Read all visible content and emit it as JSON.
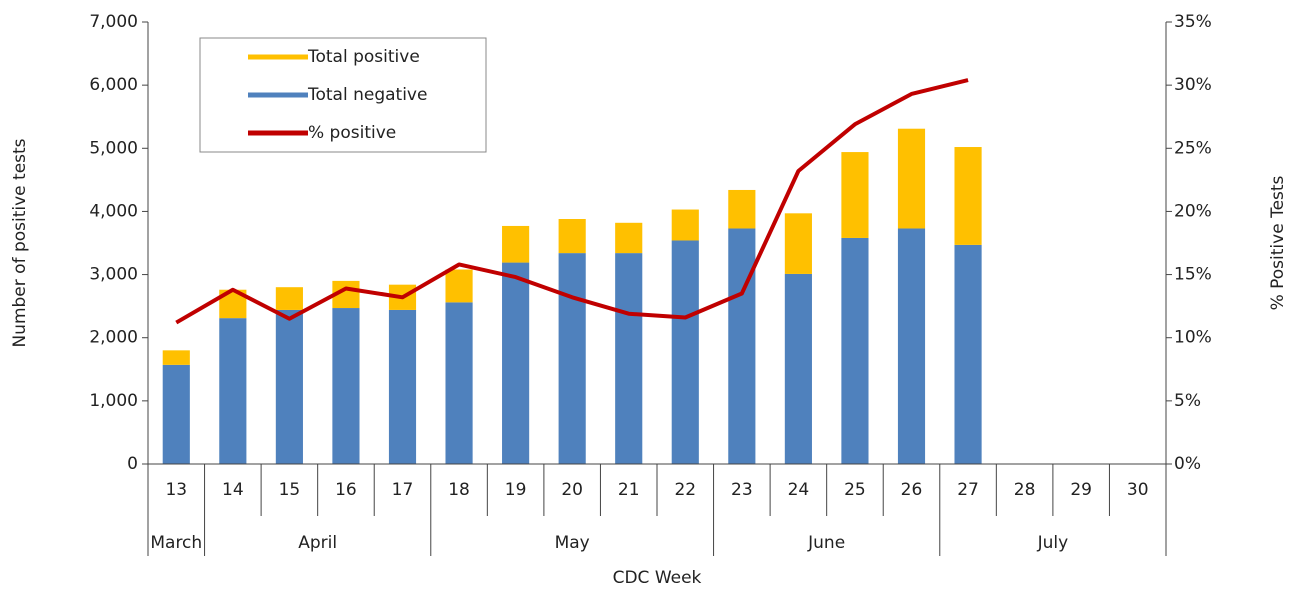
{
  "chart_data": {
    "type": "bar_line",
    "x_label": "CDC Week",
    "y_label": "Number of positive tests",
    "y2_label": "% Positive Tests",
    "categories": [
      "13",
      "14",
      "15",
      "16",
      "17",
      "18",
      "19",
      "20",
      "21",
      "22",
      "23",
      "24",
      "25",
      "26",
      "27",
      "28",
      "29",
      "30"
    ],
    "groups": [
      {
        "name": "March",
        "span": 1
      },
      {
        "name": "April",
        "span": 4
      },
      {
        "name": "May",
        "span": 5
      },
      {
        "name": "June",
        "span": 4
      },
      {
        "name": "July",
        "span": 4
      }
    ],
    "stacked": true,
    "series": [
      {
        "name": "Total positive",
        "type": "bar",
        "color": "#FFC000",
        "values": [
          230,
          450,
          360,
          430,
          400,
          520,
          580,
          540,
          480,
          490,
          610,
          960,
          1360,
          1580,
          1550,
          null,
          null,
          null
        ]
      },
      {
        "name": "Total negative",
        "type": "bar",
        "color": "#4F81BD",
        "values": [
          1570,
          2310,
          2440,
          2470,
          2440,
          2560,
          3190,
          3340,
          3340,
          3540,
          3730,
          3010,
          3580,
          3730,
          3470,
          null,
          null,
          null
        ]
      },
      {
        "name": "% positive",
        "type": "line",
        "axis": "y2",
        "color": "#C00000",
        "values": [
          11.2,
          13.8,
          11.5,
          13.9,
          13.2,
          15.8,
          14.8,
          13.2,
          11.9,
          11.6,
          13.5,
          23.2,
          26.9,
          29.3,
          30.4,
          null,
          null,
          null
        ]
      }
    ],
    "ylim": [
      0,
      7000
    ],
    "yticks": [
      0,
      {
        "value": 1000,
        "label": "1,000"
      },
      {
        "value": 2000,
        "label": "2,000"
      },
      {
        "value": 3000,
        "label": "3,000"
      },
      {
        "value": 4000,
        "label": "4,000"
      },
      {
        "value": 5000,
        "label": "5,000"
      },
      {
        "value": 6000,
        "label": "6,000"
      },
      {
        "value": 7000,
        "label": "7,000"
      }
    ],
    "y2lim": [
      0,
      35
    ],
    "y2ticks": [
      {
        "value": 0,
        "label": "0%"
      },
      {
        "value": 5,
        "label": "5%"
      },
      {
        "value": 10,
        "label": "10%"
      },
      {
        "value": 15,
        "label": "15%"
      },
      {
        "value": 20,
        "label": "20%"
      },
      {
        "value": 25,
        "label": "25%"
      },
      {
        "value": 30,
        "label": "30%"
      },
      {
        "value": 35,
        "label": "35%"
      }
    ],
    "legend": "top-left"
  }
}
